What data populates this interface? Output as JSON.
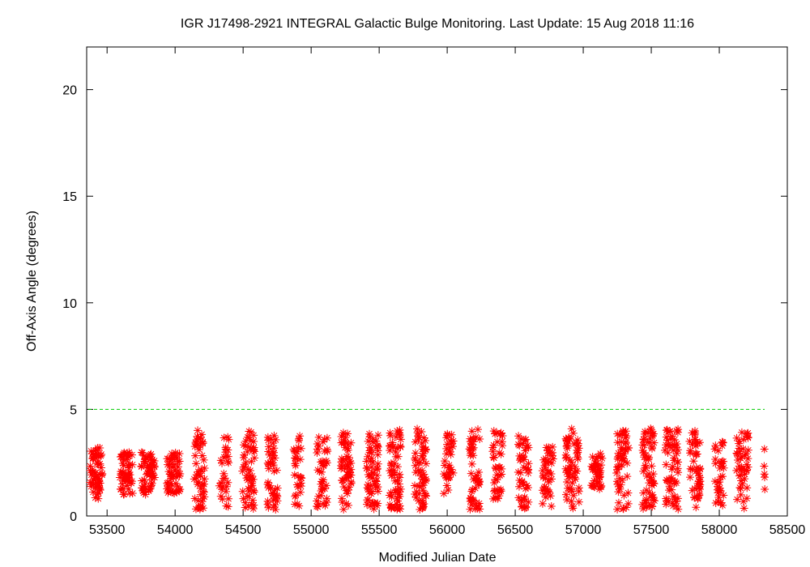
{
  "chart_data": {
    "type": "scatter",
    "title": "IGR J17498-2921   INTEGRAL Galactic Bulge Monitoring.  Last Update: 15 Aug 2018 11:16",
    "xlabel": "Modified Julian Date",
    "ylabel": "Off-Axis Angle (degrees)",
    "xlim": [
      53350,
      58500
    ],
    "ylim": [
      0,
      22
    ],
    "xticks": [
      53500,
      54000,
      54500,
      55000,
      55500,
      56000,
      56500,
      57000,
      57500,
      58000,
      58500
    ],
    "yticks": [
      0,
      5,
      10,
      15,
      20
    ],
    "grid": false,
    "reference_line": {
      "y": 5,
      "color": "#00cc00",
      "style": "dashed"
    },
    "series": [
      {
        "marker": "asterisk",
        "color": "#ff0000",
        "visits": [
          {
            "center": 53420,
            "width": 90,
            "ymin": 0.8,
            "ymax": 3.2,
            "n": 60
          },
          {
            "center": 53640,
            "width": 100,
            "ymin": 1.0,
            "ymax": 3.0,
            "n": 55
          },
          {
            "center": 53800,
            "width": 100,
            "ymin": 1.0,
            "ymax": 3.0,
            "n": 55
          },
          {
            "center": 53990,
            "width": 100,
            "ymin": 1.0,
            "ymax": 3.0,
            "n": 55
          },
          {
            "center": 54180,
            "width": 80,
            "ymin": 0.3,
            "ymax": 4.1,
            "n": 50
          },
          {
            "center": 54360,
            "width": 70,
            "ymin": 0.4,
            "ymax": 3.7,
            "n": 30
          },
          {
            "center": 54540,
            "width": 90,
            "ymin": 0.3,
            "ymax": 4.1,
            "n": 55
          },
          {
            "center": 54720,
            "width": 80,
            "ymin": 0.3,
            "ymax": 4.0,
            "n": 45
          },
          {
            "center": 54900,
            "width": 60,
            "ymin": 0.4,
            "ymax": 3.9,
            "n": 30
          },
          {
            "center": 55080,
            "width": 80,
            "ymin": 0.3,
            "ymax": 3.8,
            "n": 40
          },
          {
            "center": 55260,
            "width": 80,
            "ymin": 0.3,
            "ymax": 4.0,
            "n": 55
          },
          {
            "center": 55450,
            "width": 90,
            "ymin": 0.3,
            "ymax": 4.0,
            "n": 60
          },
          {
            "center": 55620,
            "width": 90,
            "ymin": 0.3,
            "ymax": 4.1,
            "n": 60
          },
          {
            "center": 55800,
            "width": 90,
            "ymin": 0.3,
            "ymax": 4.1,
            "n": 60
          },
          {
            "center": 56010,
            "width": 70,
            "ymin": 1.0,
            "ymax": 4.1,
            "n": 35
          },
          {
            "center": 56200,
            "width": 80,
            "ymin": 0.3,
            "ymax": 4.1,
            "n": 50
          },
          {
            "center": 56370,
            "width": 80,
            "ymin": 0.8,
            "ymax": 4.0,
            "n": 40
          },
          {
            "center": 56560,
            "width": 80,
            "ymin": 0.3,
            "ymax": 3.8,
            "n": 45
          },
          {
            "center": 56740,
            "width": 80,
            "ymin": 0.3,
            "ymax": 3.4,
            "n": 40
          },
          {
            "center": 56920,
            "width": 100,
            "ymin": 0.3,
            "ymax": 4.1,
            "n": 60
          },
          {
            "center": 57100,
            "width": 80,
            "ymin": 1.2,
            "ymax": 3.0,
            "n": 40
          },
          {
            "center": 57290,
            "width": 90,
            "ymin": 0.3,
            "ymax": 4.0,
            "n": 55
          },
          {
            "center": 57480,
            "width": 90,
            "ymin": 0.3,
            "ymax": 4.1,
            "n": 60
          },
          {
            "center": 57650,
            "width": 100,
            "ymin": 0.3,
            "ymax": 4.1,
            "n": 60
          },
          {
            "center": 57820,
            "width": 80,
            "ymin": 0.4,
            "ymax": 4.0,
            "n": 45
          },
          {
            "center": 58000,
            "width": 70,
            "ymin": 0.3,
            "ymax": 3.8,
            "n": 35
          },
          {
            "center": 58170,
            "width": 90,
            "ymin": 0.3,
            "ymax": 4.0,
            "n": 45
          },
          {
            "center": 58330,
            "width": 10,
            "ymin": 1.0,
            "ymax": 3.8,
            "n": 5
          }
        ]
      }
    ]
  }
}
